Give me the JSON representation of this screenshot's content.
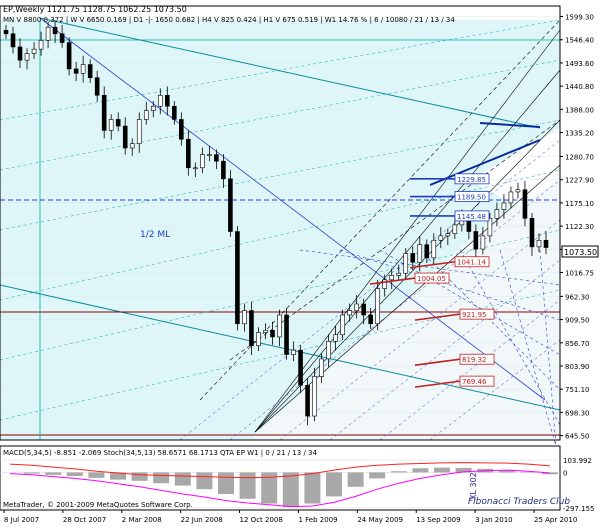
{
  "header": {
    "symbol_line": "EP,Weekly  1121.75  1128.75  1062.25  1073.50",
    "indicator_line": "MN  V 8800   0.372  |  W  V 6650   0.169  |  D1  -|-  1650   0.682  |  H4  V 825   0.424  |  H1  V 675   0.519  |  W1  14.76 %  |  6 / 10080 / 21 / 13 / 34"
  },
  "chart_data": [
    {
      "type": "candlestick",
      "x_ticks": [
        "8 Jul 2007",
        "28 Oct 2007",
        "2 Mar 2008",
        "22 Jun 2008",
        "12 Oct 2008",
        "1 Feb 2009",
        "24 May 2009",
        "13 Sep 2009",
        "3 Jan 2010",
        "25 Apr 2010"
      ],
      "y_ticks": [
        "1599.30",
        "1546.40",
        "1493.60",
        "1440.80",
        "1388.00",
        "1335.20",
        "1280.70",
        "1227.90",
        "1175.10",
        "1122.30",
        "1069.50",
        "1016.75",
        "962.30",
        "909.50",
        "856.70",
        "803.90",
        "751.10",
        "698.30",
        "645.50"
      ],
      "ylim": [
        640,
        1605
      ],
      "last_price": "1073.50",
      "price_path": [
        [
          "8 Jul 2007",
          1560
        ],
        [
          "22 Jul 2007",
          1530
        ],
        [
          "5 Aug 2007",
          1500
        ],
        [
          "19 Aug 2007",
          1515
        ],
        [
          "2 Sep 2007",
          1525
        ],
        [
          "16 Sep 2007",
          1545
        ],
        [
          "30 Sep 2007",
          1575
        ],
        [
          "14 Oct 2007",
          1560
        ],
        [
          "28 Oct 2007",
          1540
        ],
        [
          "11 Nov 2007",
          1480
        ],
        [
          "25 Nov 2007",
          1470
        ],
        [
          "9 Dec 2007",
          1490
        ],
        [
          "23 Dec 2007",
          1460
        ],
        [
          "6 Jan 2008",
          1420
        ],
        [
          "20 Jan 2008",
          1340
        ],
        [
          "3 Feb 2008",
          1365
        ],
        [
          "17 Feb 2008",
          1350
        ],
        [
          "2 Mar 2008",
          1300
        ],
        [
          "16 Mar 2008",
          1310
        ],
        [
          "30 Mar 2008",
          1365
        ],
        [
          "13 Apr 2008",
          1385
        ],
        [
          "27 Apr 2008",
          1395
        ],
        [
          "11 May 2008",
          1420
        ],
        [
          "25 May 2008",
          1395
        ],
        [
          "8 Jun 2008",
          1365
        ],
        [
          "22 Jun 2008",
          1320
        ],
        [
          "6 Jul 2008",
          1255
        ],
        [
          "20 Jul 2008",
          1255
        ],
        [
          "3 Aug 2008",
          1285
        ],
        [
          "17 Aug 2008",
          1285
        ],
        [
          "31 Aug 2008",
          1270
        ],
        [
          "14 Sep 2008",
          1230
        ],
        [
          "28 Sep 2008",
          1110
        ],
        [
          "12 Oct 2008",
          900
        ],
        [
          "26 Oct 2008",
          930
        ],
        [
          "9 Nov 2008",
          850
        ],
        [
          "23 Nov 2008",
          880
        ],
        [
          "7 Dec 2008",
          885
        ],
        [
          "21 Dec 2008",
          870
        ],
        [
          "4 Jan 2009",
          920
        ],
        [
          "18 Jan 2009",
          830
        ],
        [
          "1 Feb 2009",
          840
        ],
        [
          "15 Feb 2009",
          760
        ],
        [
          "1 Mar 2009",
          690
        ],
        [
          "15 Mar 2009",
          780
        ],
        [
          "29 Mar 2009",
          820
        ],
        [
          "12 Apr 2009",
          860
        ],
        [
          "26 Apr 2009",
          875
        ],
        [
          "10 May 2009",
          920
        ],
        [
          "24 May 2009",
          930
        ],
        [
          "7 Jun 2009",
          945
        ],
        [
          "21 Jun 2009",
          920
        ],
        [
          "5 Jul 2009",
          900
        ],
        [
          "19 Jul 2009",
          980
        ],
        [
          "2 Aug 2009",
          1000
        ],
        [
          "16 Aug 2009",
          1010
        ],
        [
          "30 Aug 2009",
          1015
        ],
        [
          "13 Sep 2009",
          1060
        ],
        [
          "27 Sep 2009",
          1040
        ],
        [
          "11 Oct 2009",
          1080
        ],
        [
          "25 Oct 2009",
          1050
        ],
        [
          "8 Nov 2009",
          1090
        ],
        [
          "22 Nov 2009",
          1100
        ],
        [
          "6 Dec 2009",
          1105
        ],
        [
          "20 Dec 2009",
          1125
        ],
        [
          "3 Jan 2010",
          1140
        ],
        [
          "17 Jan 2010",
          1110
        ],
        [
          "31 Jan 2010",
          1070
        ],
        [
          "14 Feb 2010",
          1100
        ],
        [
          "28 Feb 2010",
          1140
        ],
        [
          "14 Mar 2010",
          1160
        ],
        [
          "28 Mar 2010",
          1175
        ],
        [
          "11 Apr 2010",
          1200
        ],
        [
          "25 Apr 2010",
          1205
        ],
        [
          "9 May 2010",
          1140
        ],
        [
          "23 May 2010",
          1075
        ],
        [
          "6 Jun 2010",
          1090
        ],
        [
          "20 Jun 2010",
          1073.5
        ]
      ],
      "labels_right_boxes": [
        {
          "text": "1229.85",
          "price": 1229.85,
          "color": "#1f3fbf"
        },
        {
          "text": "1189.50",
          "price": 1189.5,
          "color": "#1f3fbf"
        },
        {
          "text": "1145.48",
          "price": 1145.48,
          "color": "#1f3fbf"
        },
        {
          "text": "1041.14",
          "price": 1041.14,
          "color": "#c02020"
        },
        {
          "text": "1004.05",
          "price": 1004.05,
          "color": "#c02020"
        },
        {
          "text": "921.95",
          "price": 921.95,
          "color": "#c02020"
        },
        {
          "text": "819.32",
          "price": 819.32,
          "color": "#c02020"
        },
        {
          "text": "769.46",
          "price": 769.46,
          "color": "#c02020"
        }
      ],
      "annotation": "1/2 ML",
      "vertical_marker": "XL 302"
    },
    {
      "type": "line",
      "title_text": "MACD(5,34,5) -8.851 -2.069  Stoch(34,5,13) 58.6571 68.1713  QTA EP W1 | 0 / 21 / 13 / 34",
      "y_ticks": [
        "103.992",
        "0",
        "-297.155"
      ],
      "series": [
        {
          "color": "#ff00ff",
          "values": [
            -10,
            -20,
            -35,
            -50,
            -70,
            -95,
            -120,
            -150,
            -180,
            -205,
            -235,
            -255,
            -270,
            -285,
            -280,
            -250,
            -200,
            -140,
            -90,
            -50,
            -20,
            5,
            15,
            20,
            10,
            -5
          ]
        },
        {
          "color": "#ff2020",
          "values": [
            70,
            60,
            45,
            30,
            10,
            -5,
            -20,
            -25,
            -30,
            -35,
            -40,
            -45,
            -40,
            -30,
            -10,
            20,
            45,
            60,
            70,
            75,
            80,
            82,
            80,
            78,
            70,
            55
          ]
        }
      ],
      "histogram": [
        0,
        -10,
        -20,
        -30,
        -45,
        -60,
        -70,
        -90,
        -110,
        -140,
        -180,
        -220,
        -260,
        -290,
        -260,
        -200,
        -120,
        -50,
        10,
        35,
        40,
        38,
        30,
        20,
        5,
        -15
      ]
    }
  ],
  "watermark": "Fibonacci Traders Club",
  "footer_credit": "MetaTrader, © 2001-2009 MetaQuotes Software Corp."
}
